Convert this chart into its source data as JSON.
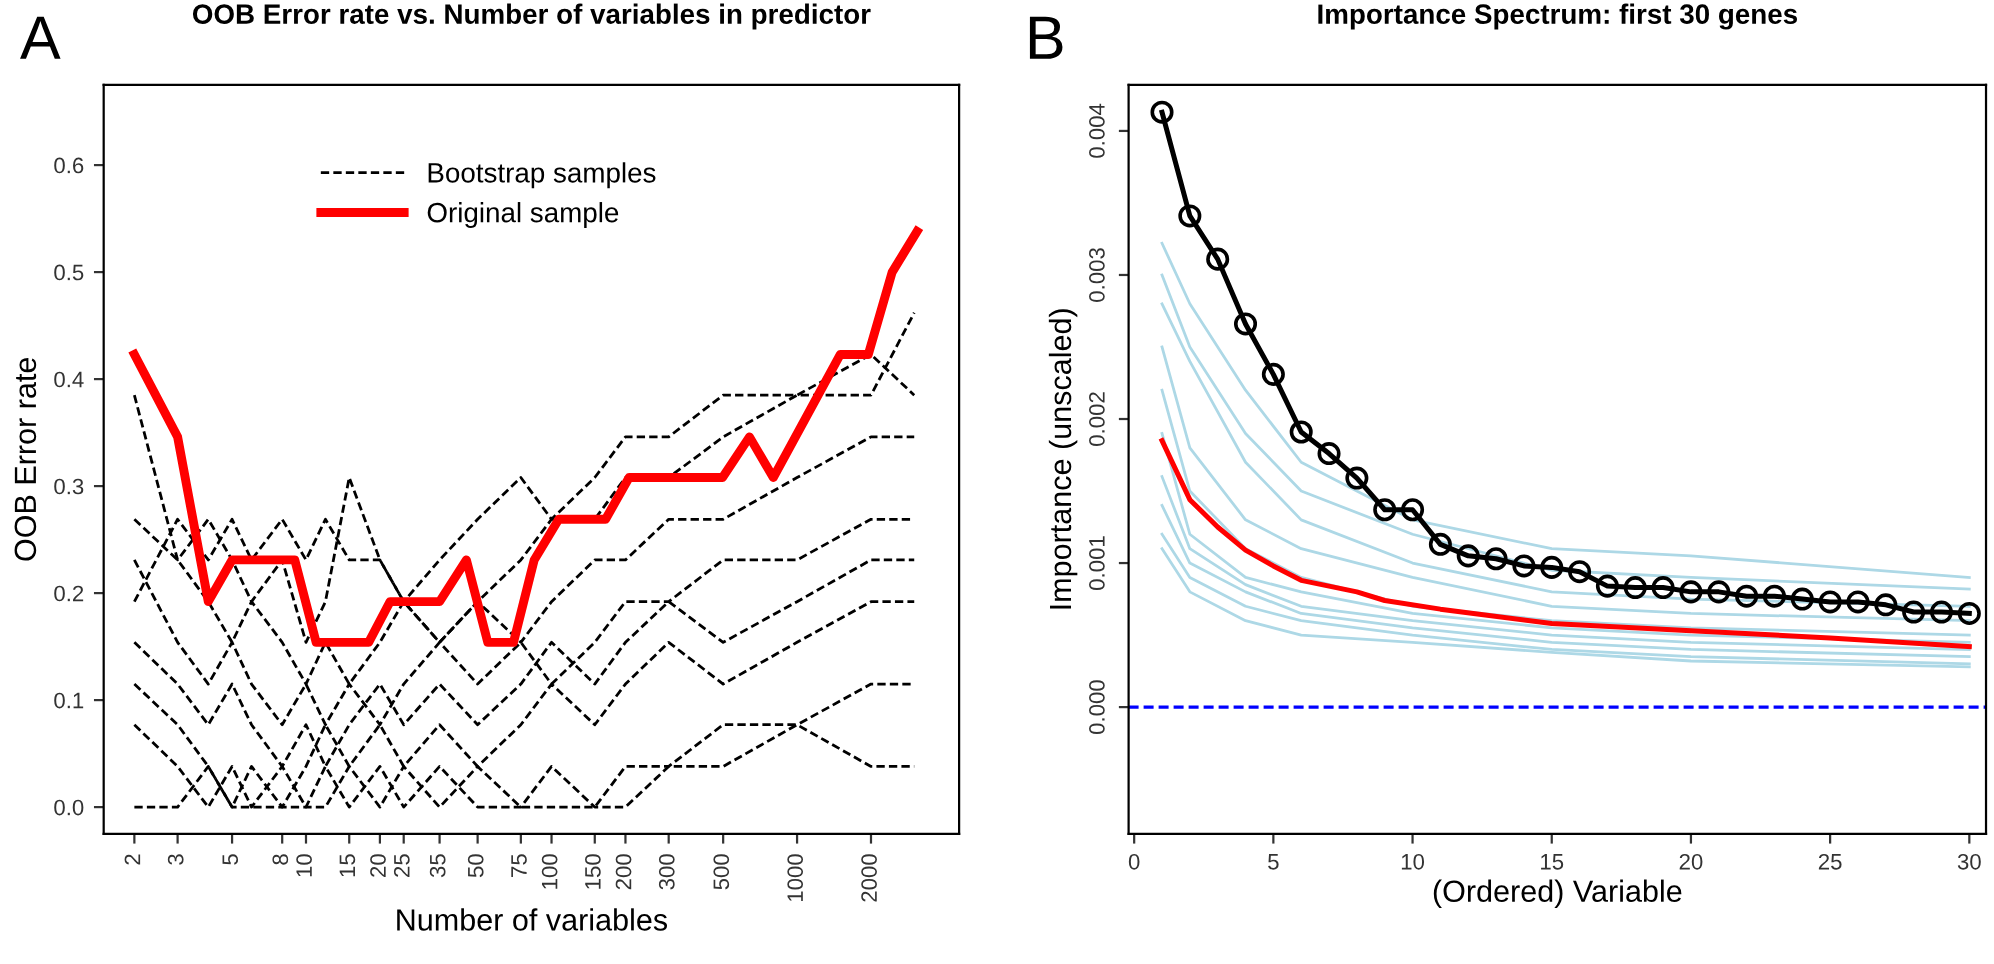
{
  "chart_data": [
    {
      "type": "line",
      "title": "OOB Error rate vs. Number of variables in predictor",
      "xlabel": "Number of variables",
      "ylabel": "OOB Error rate",
      "annotations": [
        "A"
      ],
      "log": "x",
      "legend": "top",
      "grid": false,
      "xlim": [
        1.5,
        4570
      ],
      "ylim": [
        -0.025,
        0.675
      ],
      "xticks": [
        2,
        3,
        5,
        8,
        10,
        15,
        20,
        25,
        35,
        50,
        75,
        100,
        150,
        200,
        300,
        500,
        1000,
        2000
      ],
      "yticks": [
        {
          "value": 0,
          "label": "0.0"
        },
        0.1,
        0.2,
        0.3,
        0.4,
        0.5,
        0.6
      ],
      "series": [
        {
          "name": "Bootstrap samples",
          "color": "#000000",
          "line_style": "dashed",
          "x": [
            2,
            3,
            4,
            5,
            6,
            8,
            10,
            12,
            15,
            20,
            25,
            35,
            50,
            75,
            100,
            150,
            200,
            300,
            500,
            1000,
            2000,
            3000
          ],
          "values": [
            0.385,
            0.231,
            0.269,
            0.231,
            0.192,
            0.231,
            0.154,
            0.192,
            0.308,
            0.231,
            0.192,
            0.154,
            0.192,
            0.231,
            0.269,
            0.269,
            0.308,
            0.308,
            0.346,
            0.385,
            0.385,
            0.462
          ]
        },
        {
          "color": "#000000",
          "line_style": "dashed",
          "x": [
            2,
            3,
            4,
            5,
            6,
            8,
            10,
            12,
            15,
            20,
            25,
            35,
            50,
            75,
            100,
            150,
            200,
            300,
            500,
            1000,
            2000,
            3000
          ],
          "values": [
            0.269,
            0.231,
            0.192,
            0.154,
            0.192,
            0.154,
            0.115,
            0.154,
            0.115,
            0.154,
            0.192,
            0.154,
            0.192,
            0.154,
            0.192,
            0.231,
            0.231,
            0.269,
            0.269,
            0.308,
            0.346,
            0.346
          ]
        },
        {
          "color": "#000000",
          "line_style": "dashed",
          "x": [
            2,
            3,
            4,
            5,
            6,
            8,
            10,
            12,
            15,
            20,
            25,
            35,
            50,
            75,
            100,
            150,
            200,
            300,
            500,
            1000,
            2000,
            3000
          ],
          "values": [
            0.231,
            0.154,
            0.115,
            0.154,
            0.115,
            0.077,
            0.115,
            0.077,
            0.115,
            0.077,
            0.115,
            0.154,
            0.115,
            0.154,
            0.115,
            0.154,
            0.192,
            0.192,
            0.231,
            0.231,
            0.269,
            0.269
          ]
        },
        {
          "color": "#000000",
          "line_style": "dashed",
          "x": [
            2,
            3,
            4,
            5,
            6,
            8,
            10,
            12,
            15,
            20,
            25,
            35,
            50,
            75,
            100,
            150,
            200,
            300,
            500,
            1000,
            2000,
            3000
          ],
          "values": [
            0.154,
            0.115,
            0.077,
            0.115,
            0.077,
            0.038,
            0.077,
            0.038,
            0.077,
            0.115,
            0.077,
            0.115,
            0.077,
            0.115,
            0.154,
            0.115,
            0.154,
            0.192,
            0.154,
            0.192,
            0.231,
            0.231
          ]
        },
        {
          "color": "#000000",
          "line_style": "dashed",
          "x": [
            2,
            3,
            4,
            5,
            6,
            8,
            10,
            12,
            15,
            20,
            25,
            35,
            50,
            75,
            100,
            150,
            200,
            300,
            500,
            1000,
            2000,
            3000
          ],
          "values": [
            0.115,
            0.077,
            0.038,
            0.0,
            0.038,
            0.0,
            0.038,
            0.077,
            0.038,
            0.077,
            0.038,
            0.077,
            0.038,
            0.077,
            0.115,
            0.077,
            0.115,
            0.154,
            0.115,
            0.154,
            0.192,
            0.192
          ]
        },
        {
          "color": "#000000",
          "line_style": "dashed",
          "x": [
            2,
            3,
            4,
            5,
            6,
            8,
            10,
            12,
            15,
            20,
            25,
            35,
            50,
            75,
            100,
            150,
            200,
            300,
            500,
            1000,
            2000,
            3000
          ],
          "values": [
            0.077,
            0.038,
            0.0,
            0.038,
            0.0,
            0.038,
            0.0,
            0.038,
            0.0,
            0.038,
            0.0,
            0.038,
            0.0,
            0.0,
            0.038,
            0.0,
            0.0,
            0.038,
            0.038,
            0.077,
            0.115,
            0.115
          ]
        },
        {
          "color": "#000000",
          "line_style": "dashed",
          "x": [
            2,
            3,
            4,
            5,
            6,
            8,
            10,
            12,
            15,
            20,
            25,
            35,
            50,
            75,
            100,
            150,
            200,
            300,
            500,
            1000,
            2000,
            3000
          ],
          "values": [
            0.0,
            0.0,
            0.038,
            0.0,
            0.0,
            0.0,
            0.0,
            0.0,
            0.038,
            0.0,
            0.038,
            0.0,
            0.038,
            0.0,
            0.0,
            0.0,
            0.038,
            0.038,
            0.077,
            0.077,
            0.038,
            0.038
          ]
        },
        {
          "color": "#000000",
          "line_style": "dashed",
          "x": [
            2,
            3,
            4,
            5,
            6,
            8,
            10,
            12,
            15,
            20,
            25,
            35,
            50,
            75,
            100,
            150,
            200,
            300,
            500,
            1000,
            2000,
            3000
          ],
          "values": [
            0.192,
            0.269,
            0.231,
            0.269,
            0.231,
            0.269,
            0.231,
            0.269,
            0.231,
            0.231,
            0.192,
            0.231,
            0.269,
            0.308,
            0.269,
            0.308,
            0.346,
            0.346,
            0.385,
            0.385,
            0.423,
            0.385
          ]
        },
        {
          "name": "Original sample",
          "color": "#ff0000",
          "line_style": "solid",
          "x": [
            2,
            3,
            4,
            5,
            9,
            11,
            18,
            22,
            35,
            45,
            55,
            70,
            85,
            107,
            166,
            207,
            497,
            640,
            800,
            1500,
            1950,
            2440,
            3080
          ],
          "values": [
            0.423,
            0.346,
            0.192,
            0.231,
            0.231,
            0.154,
            0.154,
            0.192,
            0.192,
            0.231,
            0.154,
            0.154,
            0.231,
            0.269,
            0.269,
            0.308,
            0.308,
            0.346,
            0.308,
            0.423,
            0.423,
            0.5,
            0.538
          ]
        }
      ]
    },
    {
      "type": "line",
      "title": "Importance Spectrum: first 30 genes",
      "xlabel": "(Ordered) Variable",
      "ylabel": "Importance (unscaled)",
      "annotations": [
        "B"
      ],
      "legend": false,
      "grid": false,
      "xlim": [
        -0.2,
        30.6
      ],
      "ylim": [
        -0.00088,
        0.00432
      ],
      "xticks": [
        0,
        5,
        10,
        15,
        20,
        25,
        30
      ],
      "yticks": [
        {
          "value": 0,
          "label": "0.000"
        },
        0.001,
        0.002,
        0.003,
        0.004
      ],
      "ref_lines": [
        {
          "axis": "y",
          "value": 0,
          "color": "#0000ff",
          "line_style": "dashed"
        }
      ],
      "series": [
        {
          "color": "#add8e6",
          "x": [
            1,
            2,
            4,
            6,
            10,
            15,
            20,
            30
          ],
          "values": [
            0.00322,
            0.0028,
            0.0022,
            0.0017,
            0.0013,
            0.0011,
            0.00105,
            0.0009
          ]
        },
        {
          "color": "#add8e6",
          "x": [
            1,
            2,
            4,
            6,
            10,
            15,
            20,
            30
          ],
          "values": [
            0.003,
            0.0025,
            0.0019,
            0.0015,
            0.0012,
            0.00095,
            0.0009,
            0.00082
          ]
        },
        {
          "color": "#add8e6",
          "x": [
            1,
            2,
            4,
            6,
            10,
            15,
            20,
            30
          ],
          "values": [
            0.0028,
            0.0024,
            0.0017,
            0.0013,
            0.001,
            0.0008,
            0.00075,
            0.0007
          ]
        },
        {
          "color": "#add8e6",
          "x": [
            1,
            2,
            4,
            6,
            10,
            15,
            20,
            30
          ],
          "values": [
            0.0025,
            0.0018,
            0.0013,
            0.0011,
            0.0009,
            0.0007,
            0.00065,
            0.0006
          ]
        },
        {
          "color": "#add8e6",
          "x": [
            1,
            2,
            4,
            6,
            10,
            15,
            20,
            30
          ],
          "values": [
            0.0022,
            0.0015,
            0.0011,
            0.0009,
            0.0007,
            0.0006,
            0.00055,
            0.0005
          ]
        },
        {
          "color": "#add8e6",
          "x": [
            1,
            2,
            4,
            6,
            10,
            15,
            20,
            30
          ],
          "values": [
            0.0019,
            0.0012,
            0.0009,
            0.0008,
            0.00065,
            0.00055,
            0.0005,
            0.00045
          ]
        },
        {
          "color": "#add8e6",
          "x": [
            1,
            2,
            4,
            6,
            10,
            15,
            20,
            30
          ],
          "values": [
            0.0016,
            0.0011,
            0.00085,
            0.0007,
            0.0006,
            0.0005,
            0.00045,
            0.0004
          ]
        },
        {
          "color": "#add8e6",
          "x": [
            1,
            2,
            4,
            6,
            10,
            15,
            20,
            30
          ],
          "values": [
            0.0014,
            0.001,
            0.0008,
            0.00065,
            0.00055,
            0.00045,
            0.0004,
            0.00035
          ]
        },
        {
          "color": "#add8e6",
          "x": [
            1,
            2,
            4,
            6,
            10,
            15,
            20,
            30
          ],
          "values": [
            0.0012,
            0.0009,
            0.0007,
            0.0006,
            0.0005,
            0.0004,
            0.00035,
            0.0003
          ]
        },
        {
          "color": "#add8e6",
          "x": [
            1,
            2,
            4,
            6,
            10,
            15,
            20,
            30
          ],
          "values": [
            0.0011,
            0.0008,
            0.0006,
            0.0005,
            0.00045,
            0.00038,
            0.00032,
            0.00028
          ]
        },
        {
          "color": "#ff0000",
          "x": [
            1,
            2,
            3,
            4,
            5,
            6,
            8,
            9,
            11,
            15,
            20,
            25,
            30
          ],
          "values": [
            0.00185,
            0.00144,
            0.00125,
            0.00109,
            0.00098,
            0.00088,
            0.0008,
            0.00074,
            0.00068,
            0.00058,
            0.00053,
            0.00048,
            0.00042
          ]
        },
        {
          "color": "#000000",
          "marker": "circle",
          "x": [
            1,
            2,
            3,
            4,
            5,
            6,
            7,
            8,
            9,
            10,
            11,
            12,
            13,
            14,
            15,
            16,
            17,
            18,
            19,
            20,
            21,
            22,
            23,
            24,
            25,
            26,
            27,
            28,
            29,
            30
          ],
          "values": [
            0.00413,
            0.00341,
            0.00311,
            0.00266,
            0.00231,
            0.00191,
            0.00176,
            0.00159,
            0.00137,
            0.00137,
            0.00113,
            0.00105,
            0.00103,
            0.00098,
            0.00097,
            0.00094,
            0.00084,
            0.00083,
            0.00083,
            0.0008,
            0.0008,
            0.00077,
            0.00077,
            0.00075,
            0.00073,
            0.00073,
            0.00071,
            0.00066,
            0.00066,
            0.00065
          ]
        }
      ]
    }
  ]
}
